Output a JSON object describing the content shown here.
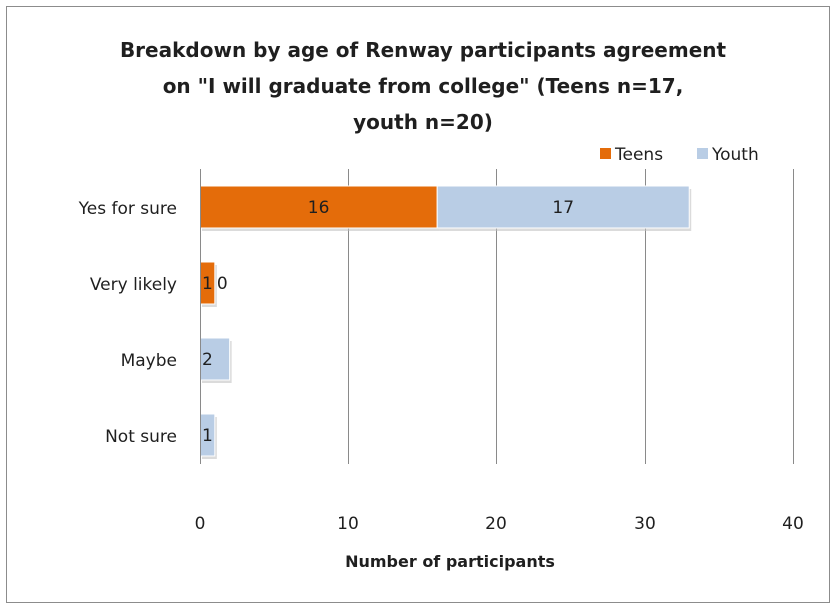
{
  "chart_data": {
    "type": "bar",
    "orientation": "horizontal",
    "stacked": true,
    "title_lines": [
      "Breakdown by age of Renway participants agreement",
      "on \"I will graduate from college\" (Teens n=17,",
      "youth  n=20)"
    ],
    "categories": [
      "Yes for sure",
      "Very likely",
      "Maybe",
      "Not sure"
    ],
    "series": [
      {
        "name": "Teens",
        "color": "#e46c0a",
        "values": [
          16,
          1,
          0,
          0
        ],
        "labels": [
          "16",
          "1",
          "",
          ""
        ]
      },
      {
        "name": "Youth",
        "color": "#b9cde5",
        "values": [
          17,
          0,
          2,
          1
        ],
        "labels": [
          "17",
          "0",
          "2",
          "1"
        ]
      }
    ],
    "xlabel": "Number of participants",
    "ylabel": "",
    "xlim": [
      0,
      40
    ],
    "xticks": [
      "0",
      "10",
      "20",
      "30",
      "40"
    ],
    "grid": "vertical",
    "legend_position": "top-right"
  }
}
